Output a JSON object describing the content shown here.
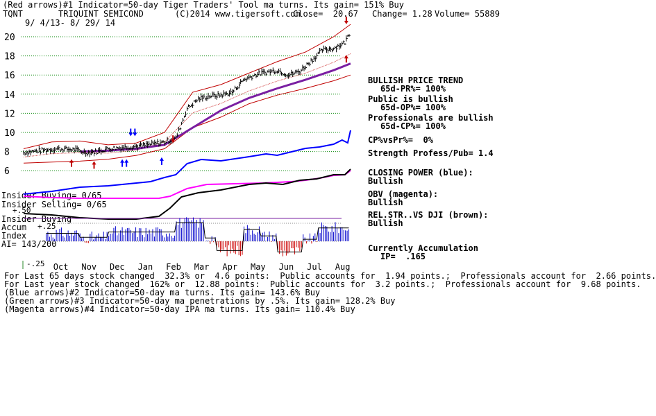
{
  "header": {
    "line1": "(Red arrows)#1 Indicator=50-day Tiger Traders' Tool ma turns. Its gain= 151% Buy",
    "symbol": "TQNT",
    "company": "TRIQUINT SEMICOND",
    "copyright": "(C)2014 www.tigersoft.com",
    "close": "Close=  20.67",
    "change": "Change= 1.28",
    "volume": "Volume= 55889",
    "dates": "9/ 4/13- 8/ 29/ 14"
  },
  "right_panel": {
    "trend_title": "BULLISH PRICE TREND",
    "pr": "65d-PR%= 100%",
    "public_title": "Public is bullish",
    "op": "65d-OP%= 100%",
    "prof_title": "Professionals are bullish",
    "cp": "65d-CP%= 100%",
    "cp_vs_pr": "CP%vsPr%=  0%",
    "strength": "Strength Profess/Pub= 1.4",
    "closing_power": "CLOSING POWER (blue):",
    "closing_power_val": "Bullish",
    "obv": "OBV (magenta):",
    "obv_val": "Bullish",
    "relstr": "REL.STR..VS DJI (brown):",
    "relstr_val": "Bullish",
    "accum": "Currently Accumulation",
    "ip": "IP=  .165"
  },
  "left_labels": {
    "insider_buying1": "Insider Buying= 0/65",
    "insider_selling": "Insider Selling= 0/65",
    "plus50": "+.50",
    "insider_buying2": "Insider Buying",
    "accum": "Accum",
    "plus25": "+.25",
    "index": "Index",
    "ai": "AI= 143/200",
    "minus25": "-.25"
  },
  "footer": {
    "line1": "For Last 65 days stock changed  32.3% or  4.6 points:  Public accounts for  1.94 points.;  Professionals account for  2.66 points.",
    "line2": "For Last year stock changed  162% or  12.88 points:  Public accounts for  3.2 points.;  Professionals account for  9.68 points.",
    "line3": "(Blue arrows)#2 Indicator=50-day ma turns. Its gain= 143.6% Buy",
    "line4": "(Green arrows)#3 Indicator=50-day ma penetrations by .5%. Its gain= 128.2% Buy",
    "line5": "(Magenta arrows)#4 Indicator=50-day IPA ma turns. Its gain= 110.4% Buy"
  },
  "colors": {
    "price": "#000000",
    "band": "#c00000",
    "ma": "#7a1fa2",
    "closing_power": "#0000ff",
    "obv": "#ff00ff",
    "relstr": "#000000",
    "accum_pos": "#0000cc",
    "accum_neg": "#cc0000",
    "grid": "#0a8a0a",
    "insider_line": "#7a1fa2"
  },
  "chart_data": {
    "type": "line",
    "title": "TQNT TRIQUINT SEMICOND",
    "x_tick_labels": [
      "Oct",
      "Nov",
      "Dec",
      "Jan",
      "Feb",
      "Mar",
      "Apr",
      "May",
      "Jun",
      "Jul",
      "Aug"
    ],
    "y_tick_labels": [
      "20",
      "18",
      "16",
      "14",
      "12",
      "10",
      "8",
      "6"
    ],
    "ylim": [
      5,
      21.5
    ],
    "accum_ticks": [
      "+.25",
      "-.25"
    ],
    "series": [
      {
        "name": "price",
        "months": [
          0,
          0.6,
          1.2,
          1.8,
          2.2,
          2.6,
          3.0,
          3.4,
          3.8,
          4.2,
          4.6,
          5.0,
          5.4,
          5.8,
          6.2,
          6.6,
          7.0,
          7.4,
          7.8,
          8.2,
          8.6,
          9.0,
          9.4,
          9.8,
          10.2,
          10.6,
          11.0,
          11.4,
          11.6
        ],
        "values": [
          7.9,
          8.1,
          8.3,
          8.2,
          7.9,
          8.0,
          8.3,
          8.4,
          8.5,
          8.6,
          8.8,
          9.0,
          9.4,
          12.5,
          13.5,
          13.8,
          13.9,
          14.2,
          15.5,
          16.0,
          16.3,
          16.5,
          16.0,
          16.4,
          17.5,
          18.6,
          18.8,
          19.4,
          20.67
        ]
      },
      {
        "name": "50-day ma",
        "months": [
          2.0,
          3.0,
          4.0,
          5.0,
          6.0,
          7.0,
          8.0,
          9.0,
          10.0,
          11.0,
          11.6
        ],
        "values": [
          8.0,
          8.1,
          8.3,
          8.7,
          10.5,
          12.3,
          13.6,
          14.6,
          15.5,
          16.5,
          17.2
        ]
      },
      {
        "name": "upper band",
        "months": [
          0.0,
          1.0,
          2.0,
          3.0,
          4.0,
          5.0,
          6.0,
          7.0,
          8.0,
          9.0,
          10.0,
          11.0,
          11.6
        ],
        "values": [
          8.3,
          9.0,
          9.1,
          8.7,
          8.9,
          10.0,
          14.2,
          15.0,
          16.2,
          17.4,
          18.4,
          20.0,
          21.3
        ]
      },
      {
        "name": "lower band",
        "months": [
          0.0,
          1.0,
          2.0,
          3.0,
          4.0,
          5.0,
          6.0,
          7.0,
          8.0,
          9.0,
          10.0,
          11.0,
          11.6
        ],
        "values": [
          6.8,
          6.9,
          7.0,
          7.2,
          7.6,
          8.3,
          10.5,
          11.6,
          13.0,
          13.9,
          14.6,
          15.4,
          16.0
        ]
      }
    ]
  }
}
